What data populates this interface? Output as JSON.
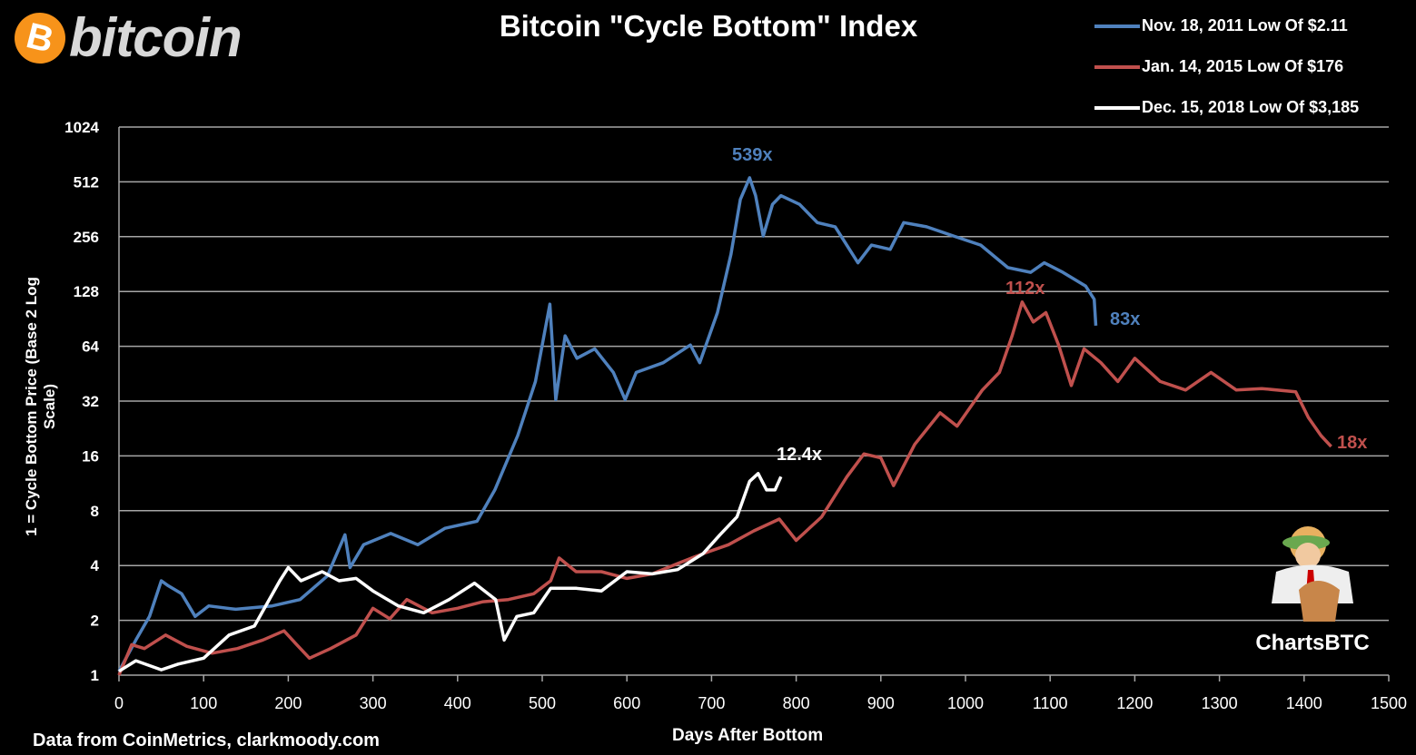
{
  "brand": {
    "coin_symbol": "B",
    "wordmark": "bitcoin",
    "coin_color": "#f7931a"
  },
  "watermark": {
    "text": "ChartsBTC"
  },
  "source_note": "Data from CoinMetrics, clarkmoody.com",
  "chart_data": {
    "type": "line",
    "title": "Bitcoin \"Cycle Bottom\" Index",
    "xlabel": "Days After Bottom",
    "ylabel": "1 = Cycle Bottom Price (Base 2 Log Scale)",
    "xlim": [
      0,
      1500
    ],
    "ylim": [
      1,
      1024
    ],
    "y_scale": "log2",
    "x_ticks": [
      "0",
      "100",
      "200",
      "300",
      "400",
      "500",
      "600",
      "700",
      "800",
      "900",
      "1000",
      "1100",
      "1200",
      "1300",
      "1400",
      "1500"
    ],
    "y_ticks": [
      "1",
      "2",
      "4",
      "8",
      "16",
      "32",
      "64",
      "128",
      "256",
      "512",
      "1024"
    ],
    "grid": "horizontal",
    "legend_position": "top-right",
    "series": [
      {
        "name": "Nov. 18, 2011 Low Of $2.11",
        "color": "#4f81bd",
        "points": [
          [
            0,
            1.05
          ],
          [
            20,
            1.56
          ],
          [
            36,
            2.1
          ],
          [
            50,
            3.3
          ],
          [
            58,
            3.1
          ],
          [
            74,
            2.8
          ],
          [
            90,
            2.1
          ],
          [
            106,
            2.4
          ],
          [
            138,
            2.3
          ],
          [
            181,
            2.4
          ],
          [
            214,
            2.6
          ],
          [
            246,
            3.5
          ],
          [
            267,
            5.9
          ],
          [
            273,
            3.9
          ],
          [
            289,
            5.2
          ],
          [
            321,
            6.0
          ],
          [
            353,
            5.2
          ],
          [
            385,
            6.4
          ],
          [
            423,
            7.0
          ],
          [
            444,
            10.4
          ],
          [
            471,
            20.7
          ],
          [
            492,
            41
          ],
          [
            509,
            109
          ],
          [
            516,
            32.6
          ],
          [
            527,
            73
          ],
          [
            541,
            55
          ],
          [
            562,
            62
          ],
          [
            584,
            46
          ],
          [
            598,
            32.6
          ],
          [
            611,
            46
          ],
          [
            643,
            52
          ],
          [
            675,
            65
          ],
          [
            686,
            52
          ],
          [
            707,
            98
          ],
          [
            723,
            205
          ],
          [
            734,
            410
          ],
          [
            745,
            539
          ],
          [
            752,
            430
          ],
          [
            761,
            258
          ],
          [
            772,
            385
          ],
          [
            782,
            430
          ],
          [
            804,
            385
          ],
          [
            825,
            306
          ],
          [
            846,
            290
          ],
          [
            873,
            184
          ],
          [
            889,
            230
          ],
          [
            911,
            218
          ],
          [
            927,
            306
          ],
          [
            954,
            290
          ],
          [
            986,
            258
          ],
          [
            1018,
            230
          ],
          [
            1050,
            173
          ],
          [
            1077,
            163
          ],
          [
            1093,
            184
          ],
          [
            1115,
            163
          ],
          [
            1142,
            137
          ],
          [
            1152,
            116
          ],
          [
            1154,
            83
          ]
        ],
        "end_label": "83x",
        "peak_label": "539x"
      },
      {
        "name": "Jan. 14, 2015 Low Of $176",
        "color": "#c0504d",
        "points": [
          [
            0,
            1
          ],
          [
            15,
            1.47
          ],
          [
            30,
            1.4
          ],
          [
            55,
            1.66
          ],
          [
            80,
            1.44
          ],
          [
            110,
            1.32
          ],
          [
            140,
            1.4
          ],
          [
            170,
            1.56
          ],
          [
            195,
            1.75
          ],
          [
            210,
            1.47
          ],
          [
            225,
            1.24
          ],
          [
            250,
            1.4
          ],
          [
            280,
            1.66
          ],
          [
            300,
            2.33
          ],
          [
            320,
            2.04
          ],
          [
            340,
            2.6
          ],
          [
            370,
            2.2
          ],
          [
            400,
            2.33
          ],
          [
            430,
            2.53
          ],
          [
            460,
            2.6
          ],
          [
            490,
            2.8
          ],
          [
            510,
            3.3
          ],
          [
            520,
            4.4
          ],
          [
            540,
            3.7
          ],
          [
            570,
            3.7
          ],
          [
            600,
            3.4
          ],
          [
            630,
            3.6
          ],
          [
            660,
            4.1
          ],
          [
            690,
            4.65
          ],
          [
            720,
            5.2
          ],
          [
            750,
            6.2
          ],
          [
            780,
            7.2
          ],
          [
            800,
            5.5
          ],
          [
            830,
            7.4
          ],
          [
            860,
            12.3
          ],
          [
            880,
            16.4
          ],
          [
            900,
            15.6
          ],
          [
            915,
            11
          ],
          [
            940,
            18.5
          ],
          [
            970,
            27.6
          ],
          [
            990,
            23.3
          ],
          [
            1020,
            36.8
          ],
          [
            1040,
            46
          ],
          [
            1055,
            73
          ],
          [
            1067,
            112
          ],
          [
            1080,
            87
          ],
          [
            1095,
            98
          ],
          [
            1110,
            65
          ],
          [
            1125,
            39
          ],
          [
            1140,
            62
          ],
          [
            1160,
            52
          ],
          [
            1180,
            41
          ],
          [
            1200,
            55
          ],
          [
            1230,
            41
          ],
          [
            1260,
            36.8
          ],
          [
            1290,
            46
          ],
          [
            1320,
            36.8
          ],
          [
            1350,
            37.5
          ],
          [
            1390,
            36
          ],
          [
            1405,
            26
          ],
          [
            1420,
            20.7
          ],
          [
            1432,
            18
          ]
        ],
        "end_label": "18x",
        "peak_label": "112x"
      },
      {
        "name": "Dec. 15, 2018 Low Of $3,185",
        "color": "#ffffff",
        "points": [
          [
            0,
            1.05
          ],
          [
            20,
            1.2
          ],
          [
            50,
            1.07
          ],
          [
            70,
            1.15
          ],
          [
            100,
            1.24
          ],
          [
            130,
            1.66
          ],
          [
            160,
            1.86
          ],
          [
            190,
            3.3
          ],
          [
            200,
            3.9
          ],
          [
            215,
            3.3
          ],
          [
            240,
            3.7
          ],
          [
            260,
            3.3
          ],
          [
            280,
            3.4
          ],
          [
            300,
            2.9
          ],
          [
            330,
            2.4
          ],
          [
            360,
            2.2
          ],
          [
            390,
            2.6
          ],
          [
            420,
            3.2
          ],
          [
            445,
            2.6
          ],
          [
            455,
            1.56
          ],
          [
            470,
            2.1
          ],
          [
            490,
            2.2
          ],
          [
            510,
            3.0
          ],
          [
            540,
            3.0
          ],
          [
            570,
            2.9
          ],
          [
            600,
            3.7
          ],
          [
            630,
            3.6
          ],
          [
            660,
            3.8
          ],
          [
            690,
            4.65
          ],
          [
            710,
            5.9
          ],
          [
            730,
            7.4
          ],
          [
            745,
            11.6
          ],
          [
            755,
            12.8
          ],
          [
            765,
            10.4
          ],
          [
            775,
            10.4
          ],
          [
            782,
            12.3
          ]
        ],
        "end_label": "12.4x"
      }
    ]
  }
}
